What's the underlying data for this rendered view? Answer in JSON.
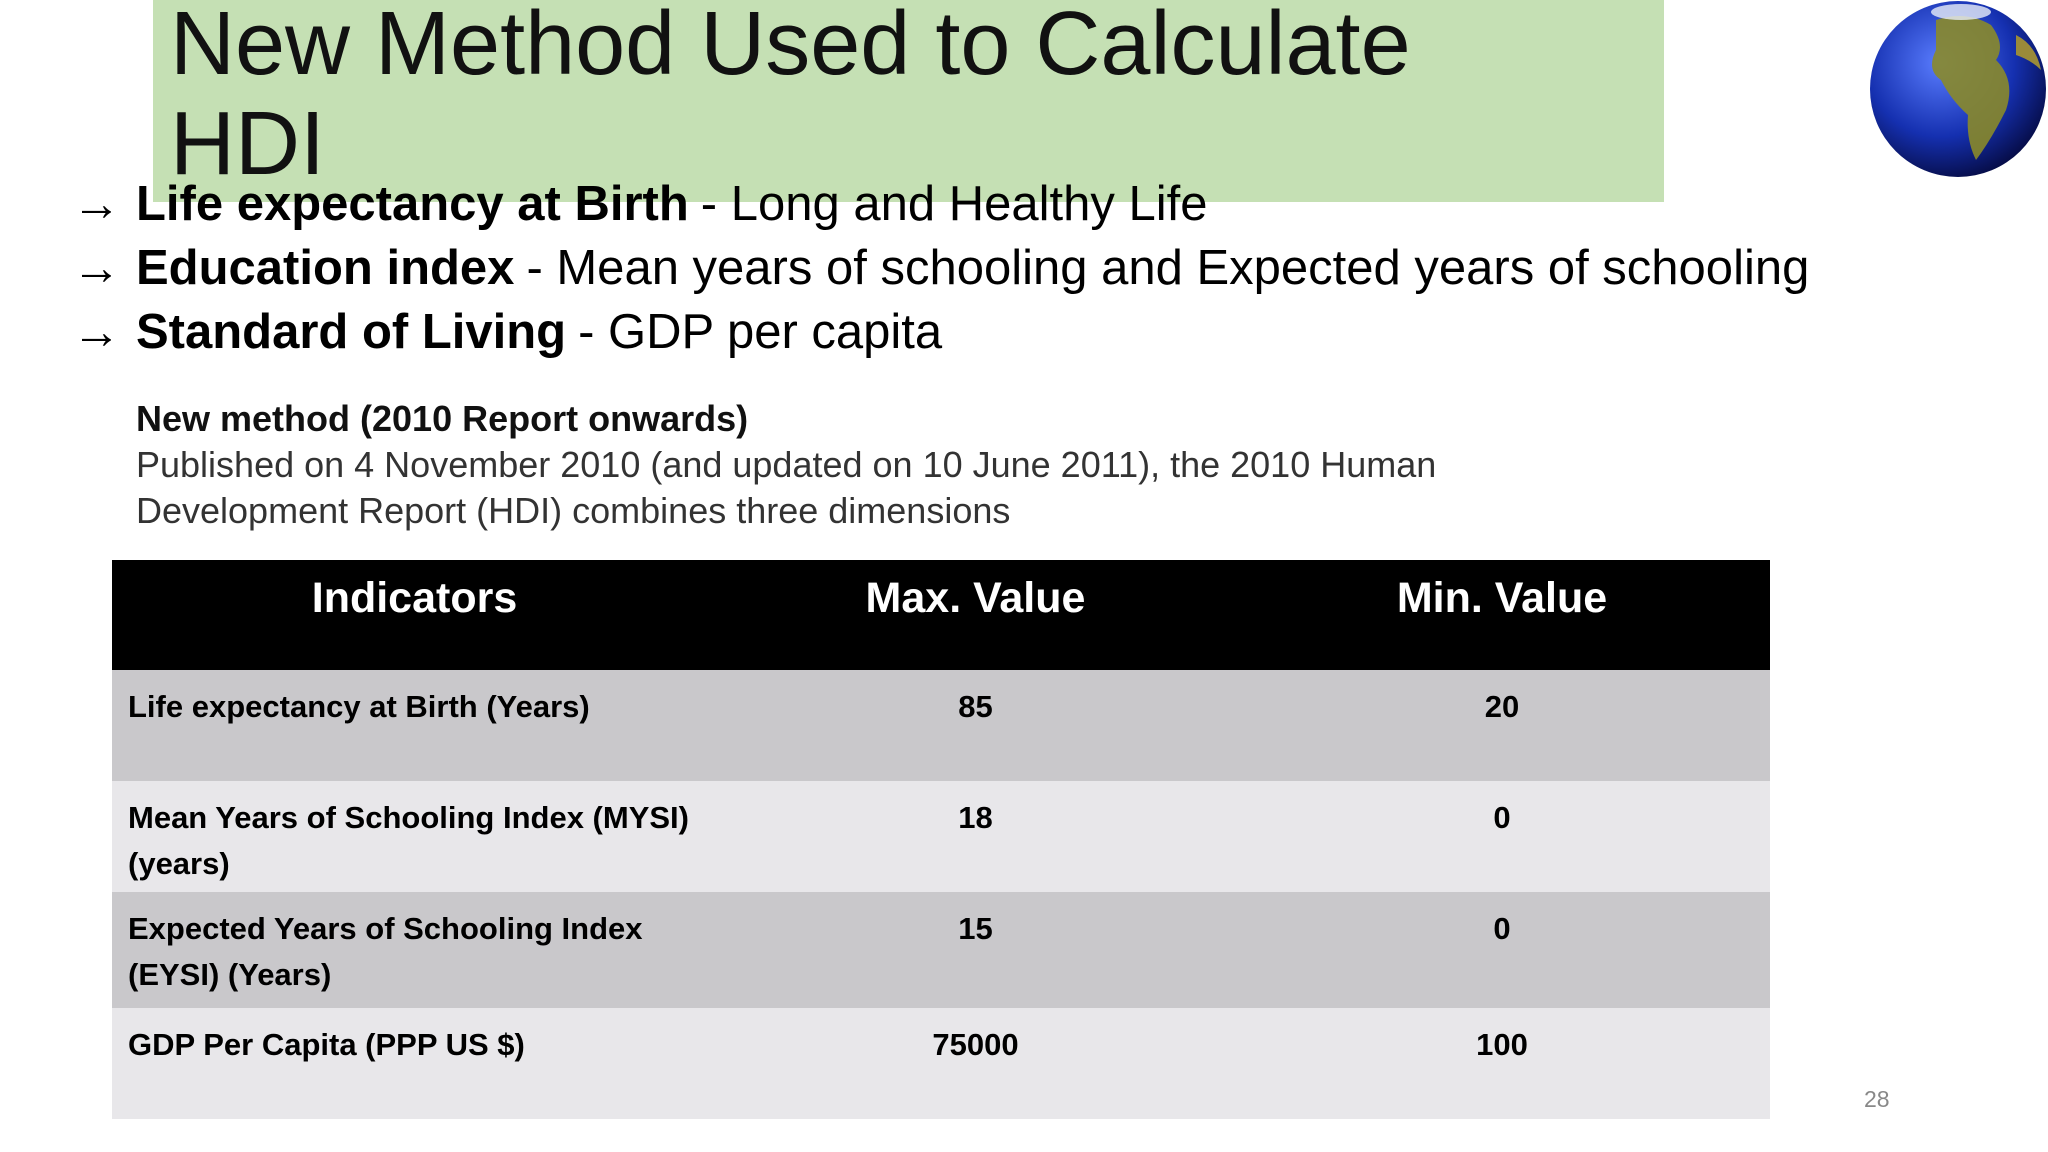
{
  "title": "New Method Used to Calculate HDI",
  "bullet_marker": "→",
  "bullets": [
    {
      "term": "Life expectancy at Birth",
      "desc": "- Long and Healthy Life"
    },
    {
      "term": "Education index",
      "desc": "- Mean years of schooling and Expected years of schooling"
    },
    {
      "term": "Standard of Living",
      "desc": "- GDP per capita"
    }
  ],
  "note": {
    "heading": "New method (2010 Report onwards)",
    "body": [
      "Published on 4 November 2010 (and updated on 10 June 2011), the 2010 Human",
      "Development Report (HDI) combines three dimensions"
    ]
  },
  "table": {
    "header": [
      "Indicators",
      "Max. Value",
      "Min. Value"
    ],
    "rows": [
      [
        "Life expectancy at Birth (Years)",
        "85",
        "20"
      ],
      [
        "Mean Years of Schooling Index (MYSI) (years)",
        "18",
        "0"
      ],
      [
        "Expected Years of Schooling Index (EYSI) (Years)",
        "15",
        "0"
      ],
      [
        "GDP Per Capita (PPP US $)",
        "75000",
        "100"
      ]
    ]
  },
  "page_number": "28"
}
